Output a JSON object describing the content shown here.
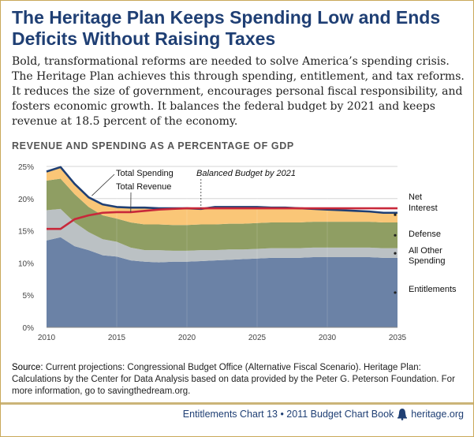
{
  "header": {
    "title": "The Heritage Plan Keeps Spending Low and Ends Deficits Without Raising Taxes",
    "intro": "Bold, transformational reforms are needed to solve America’s spending crisis. The Heritage Plan achieves this through spending, entitlement, and tax reforms. It reduces the size of government, encourages personal fiscal responsibility, and fosters economic growth. It balances the federal budget by 2021 and keeps revenue at 18.5 percent of the economy."
  },
  "chart_heading": "REVENUE AND SPENDING AS A PERCENTAGE OF GDP",
  "source": {
    "label": "Source:",
    "text": "Current projections: Congressional Budget Office (Alternative Fiscal Scenario). Heritage Plan: Calculations by the Center for Data Analysis based on data provided by the Peter G. Peterson Foundation. For more information, go to savingthedream.org."
  },
  "footer": {
    "text": "Entitlements Chart 13 • 2011 Budget Chart Book",
    "site": "heritage.org"
  },
  "chart_data": {
    "type": "area",
    "x": [
      2010,
      2011,
      2012,
      2013,
      2014,
      2015,
      2016,
      2017,
      2018,
      2019,
      2020,
      2021,
      2022,
      2023,
      2024,
      2025,
      2026,
      2027,
      2028,
      2029,
      2030,
      2031,
      2032,
      2033,
      2034,
      2035
    ],
    "xticks": [
      2010,
      2015,
      2020,
      2025,
      2030,
      2035
    ],
    "ylim": [
      0,
      25
    ],
    "yticks": [
      0,
      5,
      10,
      15,
      20,
      25
    ],
    "ytick_labels": [
      "0%",
      "5%",
      "10%",
      "15%",
      "20%",
      "25%"
    ],
    "stacked_series": [
      {
        "name": "Entitlements",
        "color": "#6b82a6",
        "values": [
          13.5,
          14.0,
          12.6,
          12.0,
          11.2,
          11.0,
          10.4,
          10.2,
          10.1,
          10.2,
          10.2,
          10.3,
          10.4,
          10.5,
          10.6,
          10.7,
          10.8,
          10.8,
          10.8,
          10.9,
          10.9,
          10.9,
          10.9,
          10.9,
          10.8,
          10.8
        ]
      },
      {
        "name": "All Other Spending",
        "color": "#bbc1c4",
        "values": [
          4.7,
          4.4,
          3.7,
          2.8,
          2.5,
          2.3,
          2.0,
          1.8,
          1.9,
          1.7,
          1.7,
          1.7,
          1.6,
          1.6,
          1.5,
          1.5,
          1.5,
          1.5,
          1.5,
          1.5,
          1.5,
          1.5,
          1.5,
          1.5,
          1.5,
          1.5
        ]
      },
      {
        "name": "Defense",
        "color": "#8f9e63",
        "values": [
          4.6,
          4.7,
          4.4,
          3.9,
          3.7,
          3.6,
          3.9,
          4.0,
          4.0,
          4.0,
          4.0,
          4.0,
          4.0,
          4.0,
          4.0,
          4.0,
          4.0,
          4.0,
          4.0,
          4.0,
          4.0,
          4.0,
          4.0,
          4.0,
          4.0,
          4.0
        ]
      },
      {
        "name": "Net Interest",
        "color": "#fac677",
        "values": [
          1.4,
          1.8,
          1.6,
          1.5,
          1.7,
          1.8,
          2.3,
          2.6,
          2.5,
          2.6,
          2.6,
          2.4,
          2.7,
          2.6,
          2.6,
          2.5,
          2.3,
          2.3,
          2.2,
          2.0,
          1.9,
          1.8,
          1.7,
          1.6,
          1.5,
          1.5
        ]
      }
    ],
    "lines": [
      {
        "name": "Total Spending",
        "color": "#1f3f74",
        "values": [
          24.2,
          24.9,
          22.3,
          20.2,
          19.1,
          18.7,
          18.6,
          18.6,
          18.5,
          18.5,
          18.5,
          18.4,
          18.7,
          18.7,
          18.7,
          18.7,
          18.6,
          18.6,
          18.5,
          18.4,
          18.3,
          18.2,
          18.1,
          18.0,
          17.8,
          17.8
        ]
      },
      {
        "name": "Total Revenue",
        "color": "#c8283a",
        "values": [
          15.3,
          15.3,
          16.8,
          17.4,
          17.8,
          17.9,
          17.9,
          18.1,
          18.3,
          18.4,
          18.5,
          18.5,
          18.5,
          18.5,
          18.5,
          18.5,
          18.5,
          18.5,
          18.5,
          18.5,
          18.5,
          18.5,
          18.5,
          18.5,
          18.5,
          18.5
        ]
      }
    ],
    "annotations": {
      "total_spending_label": "Total Spending",
      "total_revenue_label": "Total Revenue",
      "balanced_budget_label": "Balanced Budget by 2021",
      "balanced_budget_year": 2021,
      "net_label_1": "Net",
      "net_label_2": "Interest",
      "defense_label": "Defense",
      "other_label_1": "All Other",
      "other_label_2": "Spending",
      "entitlements_label": "Entitlements"
    }
  }
}
